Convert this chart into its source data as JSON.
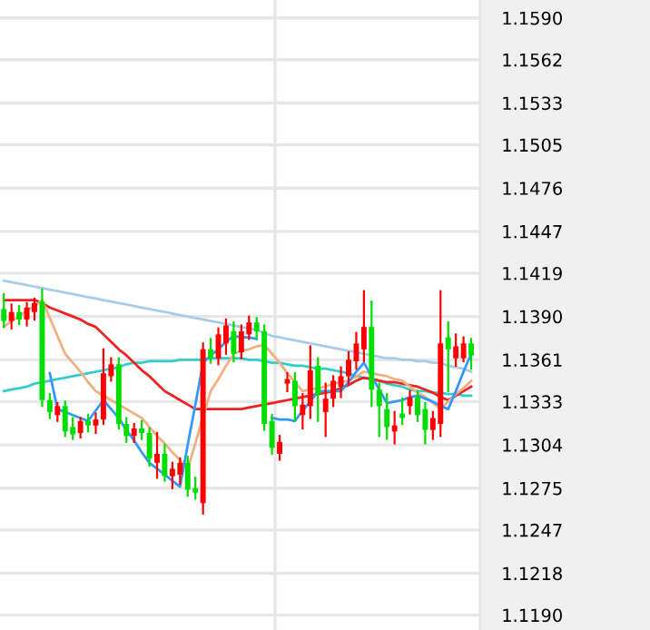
{
  "chart_data": {
    "type": "candlestick",
    "categories": [
      null,
      null,
      null,
      null,
      null,
      null,
      null,
      null,
      null,
      null,
      null,
      null,
      null,
      null,
      null,
      null,
      null,
      null,
      null,
      null,
      null,
      null,
      null,
      null,
      null,
      null,
      null,
      null,
      null,
      null,
      null,
      null,
      null,
      null,
      null,
      null,
      null,
      null,
      null,
      null,
      null,
      null,
      null,
      null,
      null,
      null,
      null,
      null,
      null,
      null,
      null,
      null,
      null,
      null,
      null,
      null,
      null,
      null,
      null,
      null,
      null,
      null
    ],
    "ohlc": [
      [
        1.1395,
        1.1405,
        1.1383,
        1.1387
      ],
      [
        1.1387,
        1.1398,
        1.1382,
        1.1393
      ],
      [
        1.1393,
        1.1397,
        1.1385,
        1.1388
      ],
      [
        1.1388,
        1.1399,
        1.1384,
        1.1396
      ],
      [
        1.1393,
        1.1402,
        1.1388,
        1.1399
      ],
      [
        1.14,
        1.1408,
        1.133,
        1.1334
      ],
      [
        1.1334,
        1.1338,
        1.1322,
        1.1326
      ],
      [
        1.1324,
        1.1332,
        1.132,
        1.133
      ],
      [
        1.133,
        1.1333,
        1.131,
        1.1313
      ],
      [
        1.1316,
        1.1322,
        1.1308,
        1.1311
      ],
      [
        1.1312,
        1.1322,
        1.1309,
        1.132
      ],
      [
        1.132,
        1.1324,
        1.1313,
        1.1317
      ],
      [
        1.1317,
        1.1325,
        1.1312,
        1.1321
      ],
      [
        1.1321,
        1.1368,
        1.1318,
        1.1352
      ],
      [
        1.135,
        1.1362,
        1.1347,
        1.1358
      ],
      [
        1.1358,
        1.1362,
        1.1315,
        1.1318
      ],
      [
        1.1318,
        1.1322,
        1.1306,
        1.131
      ],
      [
        1.131,
        1.1318,
        1.1306,
        1.1315
      ],
      [
        1.1315,
        1.132,
        1.1308,
        1.1312
      ],
      [
        1.1312,
        1.1315,
        1.129,
        1.1295
      ],
      [
        1.1292,
        1.1312,
        1.1282,
        1.1298
      ],
      [
        1.1298,
        1.1304,
        1.128,
        1.1283
      ],
      [
        1.1283,
        1.1292,
        1.1275,
        1.1288
      ],
      [
        1.1284,
        1.1295,
        1.1278,
        1.1292
      ],
      [
        1.1292,
        1.1296,
        1.127,
        1.1274
      ],
      [
        1.1275,
        1.1282,
        1.1268,
        1.1272
      ],
      [
        1.1265,
        1.1372,
        1.1258,
        1.1368
      ],
      [
        1.1368,
        1.1375,
        1.1359,
        1.1362
      ],
      [
        1.1362,
        1.1382,
        1.1358,
        1.1378
      ],
      [
        1.1372,
        1.1388,
        1.1365,
        1.1384
      ],
      [
        1.138,
        1.1386,
        1.136,
        1.1365
      ],
      [
        1.1366,
        1.1384,
        1.1362,
        1.138
      ],
      [
        1.1378,
        1.139,
        1.1375,
        1.1386
      ],
      [
        1.1386,
        1.1389,
        1.1376,
        1.138
      ],
      [
        1.138,
        1.1384,
        1.1314,
        1.1318
      ],
      [
        1.132,
        1.1324,
        1.1298,
        1.1302
      ],
      [
        1.1298,
        1.131,
        1.1294,
        1.1306
      ],
      [
        1.1345,
        1.1352,
        1.134,
        1.1348
      ],
      [
        1.1347,
        1.1352,
        1.132,
        1.133
      ],
      [
        1.1324,
        1.1338,
        1.1315,
        1.1331
      ],
      [
        1.133,
        1.137,
        1.1322,
        1.1354
      ],
      [
        1.1357,
        1.1362,
        1.132,
        1.1338
      ],
      [
        1.1326,
        1.1345,
        1.131,
        1.1335
      ],
      [
        1.1335,
        1.135,
        1.133,
        1.1347
      ],
      [
        1.1343,
        1.1356,
        1.1336,
        1.135
      ],
      [
        1.135,
        1.1366,
        1.1345,
        1.1361
      ],
      [
        1.136,
        1.1379,
        1.1355,
        1.1372
      ],
      [
        1.1368,
        1.1407,
        1.136,
        1.1383
      ],
      [
        1.1383,
        1.14,
        1.133,
        1.1341
      ],
      [
        1.1341,
        1.1345,
        1.131,
        1.133
      ],
      [
        1.1328,
        1.1338,
        1.1308,
        1.1316
      ],
      [
        1.1313,
        1.1326,
        1.1305,
        1.1317
      ],
      [
        1.1325,
        1.1335,
        1.1318,
        1.1322
      ],
      [
        1.133,
        1.134,
        1.1325,
        1.1336
      ],
      [
        1.1336,
        1.134,
        1.132,
        1.1324
      ],
      [
        1.1328,
        1.1332,
        1.1305,
        1.1314
      ],
      [
        1.1314,
        1.1326,
        1.1308,
        1.1322
      ],
      [
        1.1318,
        1.1407,
        1.131,
        1.1372
      ],
      [
        1.1376,
        1.1386,
        1.134,
        1.1368
      ],
      [
        1.1362,
        1.1378,
        1.1357,
        1.137
      ],
      [
        1.1362,
        1.1376,
        1.136,
        1.1372
      ],
      [
        1.1372,
        1.1375,
        1.1355,
        1.1364
      ]
    ],
    "colors": [
      "#00dd00",
      "#ff0000",
      "#00dd00",
      "#ff0000",
      "#ff0000",
      "#00dd00",
      "#00dd00",
      "#ff0000",
      "#00dd00",
      "#00dd00",
      "#ff0000",
      "#00dd00",
      "#ff0000",
      "#ff0000",
      "#ff0000",
      "#00dd00",
      "#00dd00",
      "#ff0000",
      "#00dd00",
      "#00dd00",
      "#ff0000",
      "#00dd00",
      "#ff0000",
      "#ff0000",
      "#00dd00",
      "#00dd00",
      "#ff0000",
      "#00dd00",
      "#ff0000",
      "#ff0000",
      "#00dd00",
      "#ff0000",
      "#ff0000",
      "#00dd00",
      "#00dd00",
      "#00dd00",
      "#ff0000",
      "#ff0000",
      "#00dd00",
      "#ff0000",
      "#ff0000",
      "#00dd00",
      "#ff0000",
      "#ff0000",
      "#ff0000",
      "#ff0000",
      "#ff0000",
      "#ff0000",
      "#00dd00",
      "#00dd00",
      "#00dd00",
      "#ff0000",
      "#00dd00",
      "#ff0000",
      "#00dd00",
      "#00dd00",
      "#ff0000",
      "#ff0000",
      "#00dd00",
      "#ff0000",
      "#ff0000",
      "#00dd00"
    ],
    "series": [
      {
        "type": "line",
        "color": "#a8cce6",
        "values": [
          1.1414,
          1.1413,
          1.1412,
          1.1411,
          1.141,
          1.1409,
          1.1408,
          1.1407,
          1.1406,
          1.1405,
          1.1404,
          1.1403,
          1.1402,
          1.1401,
          1.14,
          1.1399,
          1.1398,
          1.1397,
          1.1396,
          1.1395,
          1.1394,
          1.1393,
          1.1392,
          1.1391,
          1.139,
          1.1389,
          1.1388,
          1.1387,
          1.1386,
          1.1385,
          1.1384,
          1.1383,
          1.1382,
          1.1381,
          1.1379,
          1.1377,
          1.1376,
          1.1375,
          1.1374,
          1.1373,
          1.1372,
          1.1371,
          1.137,
          1.1369,
          1.1368,
          1.1367,
          1.1366,
          1.1365,
          1.1364,
          1.1363,
          1.1362,
          1.1362,
          1.1361,
          1.1361,
          1.136,
          1.136,
          1.1359,
          1.1359,
          1.1357,
          1.1356,
          1.1355,
          1.1353
        ]
      },
      {
        "type": "line",
        "color": "#33cccc",
        "values": [
          1.134,
          1.1341,
          1.1342,
          1.1343,
          1.1345,
          1.1346,
          1.1347,
          1.1348,
          1.1349,
          1.135,
          1.1351,
          1.1352,
          1.1353,
          1.1354,
          1.1355,
          1.1356,
          1.1358,
          1.1359,
          1.1359,
          1.136,
          1.136,
          1.136,
          1.136,
          1.1361,
          1.1361,
          1.1361,
          1.1361,
          1.1362,
          1.1362,
          1.1362,
          1.1362,
          1.1362,
          1.1361,
          1.1361,
          1.136,
          1.1359,
          1.1359,
          1.1358,
          1.1357,
          1.1357,
          1.1356,
          1.1355,
          1.1355,
          1.1354,
          1.1353,
          1.1352,
          1.135,
          1.1349,
          1.1348,
          1.1347,
          1.1345,
          1.1344,
          1.1343,
          1.1341,
          1.134,
          1.134,
          1.1339,
          1.1339,
          1.1338,
          1.1338,
          1.1337,
          1.1337
        ]
      },
      {
        "type": "line",
        "color": "#ee2222",
        "values": [
          1.1401,
          1.1401,
          1.1401,
          1.1401,
          1.1401,
          1.1399,
          1.1396,
          1.1394,
          1.1392,
          1.139,
          1.1388,
          1.1385,
          1.1383,
          1.1378,
          1.1373,
          1.1368,
          1.1364,
          1.1359,
          1.1354,
          1.135,
          1.1345,
          1.134,
          1.1337,
          1.1334,
          1.1331,
          1.1328,
          1.1328,
          1.1328,
          1.1328,
          1.1328,
          1.1328,
          1.1328,
          1.1329,
          1.133,
          1.1331,
          1.1332,
          1.1333,
          1.1334,
          1.1335,
          1.1336,
          1.1337,
          1.1338,
          1.1339,
          1.134,
          1.1342,
          1.1344,
          1.1347,
          1.1349,
          1.1348,
          1.1347,
          1.1346,
          1.1346,
          1.1345,
          1.1344,
          1.1343,
          1.1341,
          1.1339,
          1.1336,
          1.1334,
          1.1337,
          1.134,
          1.1343
        ]
      },
      {
        "type": "line",
        "color": "#f0b080",
        "values": [
          1.1383,
          1.1387,
          1.139,
          1.1394,
          1.1397,
          1.1401,
          1.1389,
          1.1377,
          1.1365,
          1.1359,
          1.1353,
          1.1346,
          1.134,
          1.1337,
          1.1334,
          1.1331,
          1.1328,
          1.1325,
          1.1322,
          1.1316,
          1.131,
          1.1305,
          1.1299,
          1.1294,
          1.1288,
          1.1305,
          1.1323,
          1.134,
          1.1348,
          1.1357,
          1.1365,
          1.1367,
          1.1368,
          1.137,
          1.1371,
          1.1365,
          1.1359,
          1.1352,
          1.1346,
          1.134,
          1.1341,
          1.1342,
          1.1343,
          1.1345,
          1.1346,
          1.1347,
          1.135,
          1.1353,
          1.1352,
          1.1351,
          1.135,
          1.1348,
          1.1347,
          1.1343,
          1.1339,
          1.1336,
          1.1332,
          1.1328,
          1.1333,
          1.1338,
          1.1342,
          1.1347
        ]
      },
      {
        "type": "line",
        "color": "#3399ff",
        "values": [
          null,
          null,
          null,
          null,
          null,
          null,
          1.1352,
          1.1328,
          1.1326,
          1.1324,
          1.1322,
          1.132,
          1.1327,
          1.1334,
          1.1328,
          1.1322,
          1.1314,
          1.1307,
          1.1299,
          1.1292,
          1.1288,
          1.1284,
          1.128,
          1.1276,
          1.1304,
          1.1331,
          1.1359,
          1.1364,
          1.1368,
          1.1373,
          1.1377,
          1.1376,
          1.1376,
          1.1375,
          null,
          1.1322,
          1.1321,
          1.1321,
          1.132,
          1.1327,
          1.1333,
          1.134,
          1.134,
          1.134,
          1.134,
          1.1346,
          1.1353,
          1.1359,
          1.135,
          1.1341,
          1.1332,
          1.1333,
          1.1334,
          1.1336,
          1.1337,
          1.1335,
          1.1333,
          1.133,
          1.1328,
          1.134,
          1.1353,
          1.1365
        ]
      }
    ],
    "ylim": [
      1.118,
      1.1602
    ],
    "yticks": [
      {
        "value": 1.159,
        "label": "1.1590"
      },
      1.1562,
      1.1533,
      1.1505,
      1.1476,
      1.1447,
      1.1419,
      {
        "value": 1.139,
        "label": "1.1390"
      },
      1.1361,
      1.1333,
      1.1304,
      1.1275,
      1.1247,
      1.1218,
      {
        "value": 1.119,
        "label": "1.1190"
      }
    ],
    "tick_labels": "y",
    "grid": "y"
  }
}
